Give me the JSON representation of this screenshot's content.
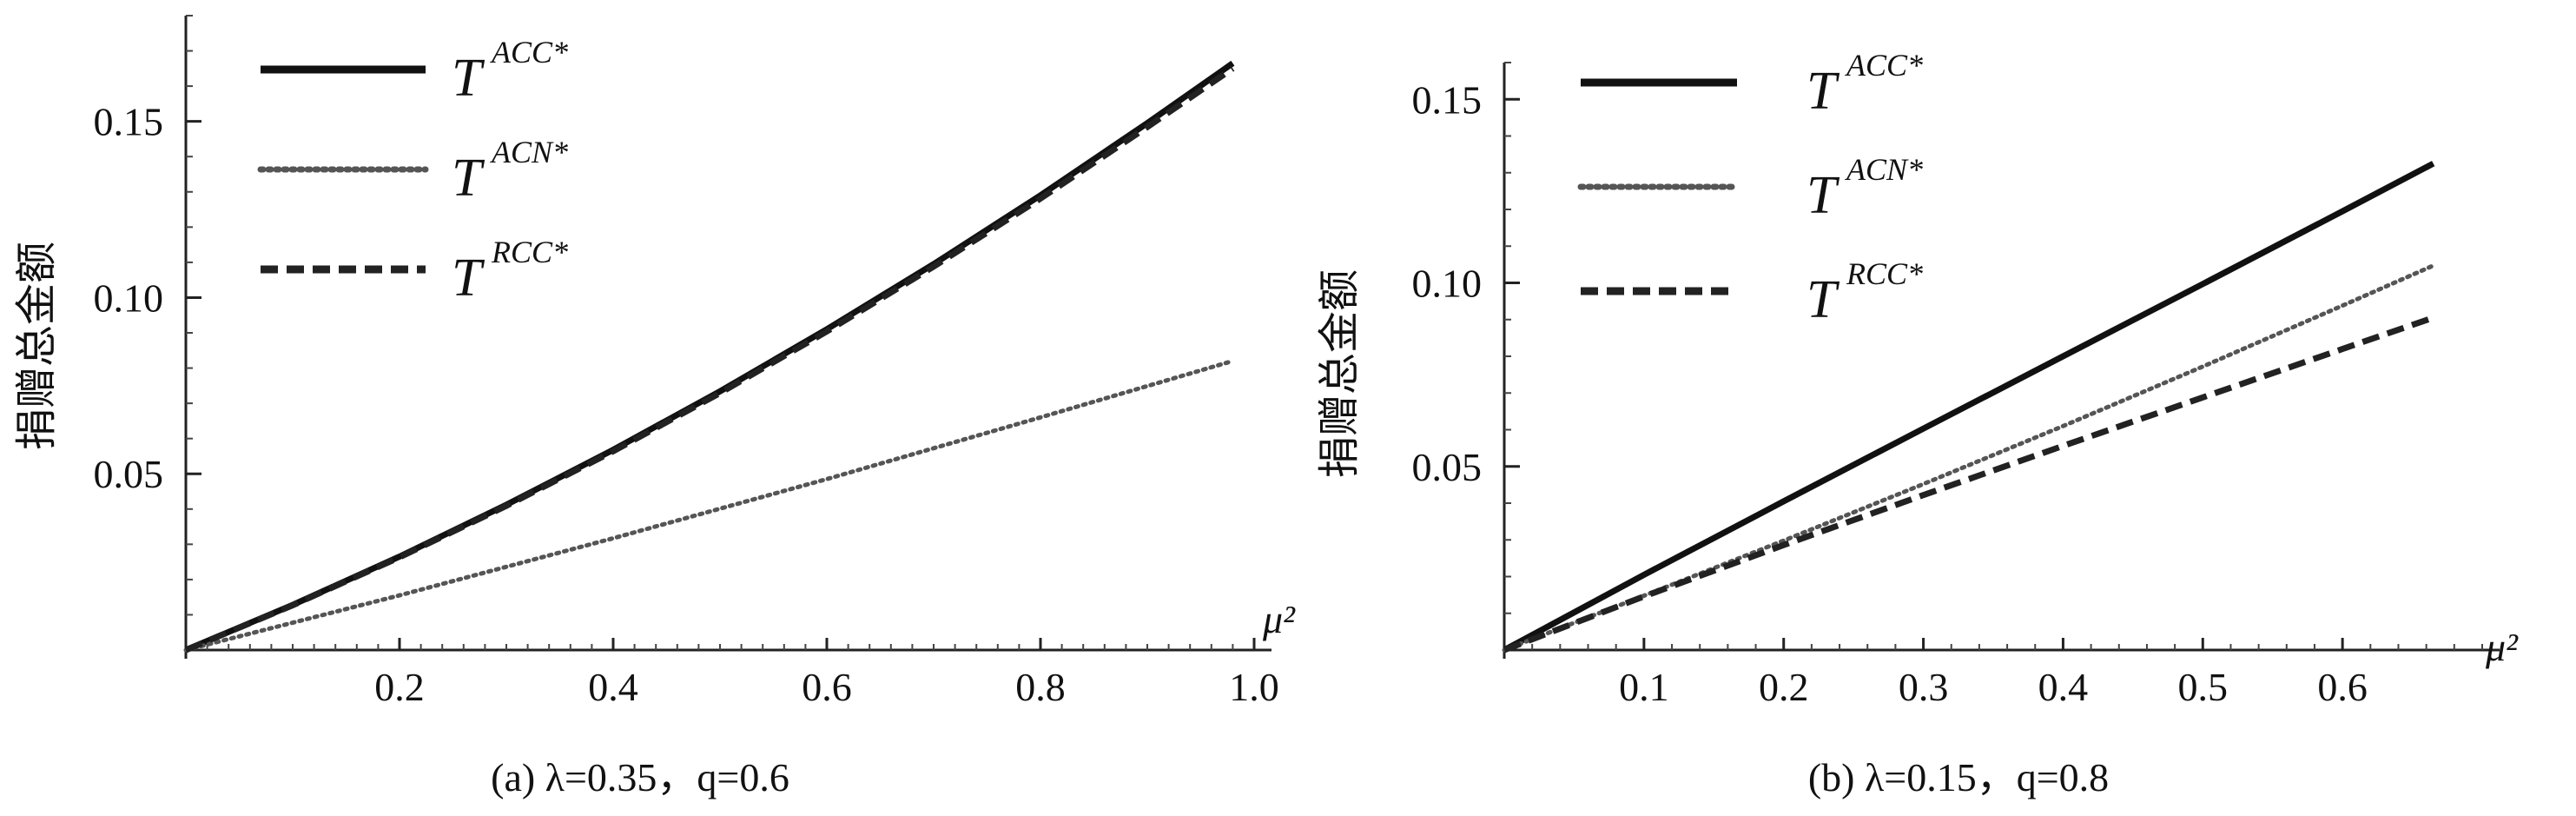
{
  "chart_data": [
    {
      "id": "a",
      "type": "line",
      "caption": "(a) λ=0.35，q=0.6",
      "ylabel": "捐赠总金额",
      "xlabel": "μ²",
      "xlim": [
        0,
        1.0
      ],
      "ylim": [
        0,
        0.18
      ],
      "x_ticks": [
        0.2,
        0.4,
        0.6,
        0.8,
        1.0
      ],
      "x_tick_labels": [
        "0.2",
        "0.4",
        "0.6",
        "0.8",
        "1.0"
      ],
      "y_ticks": [
        0.05,
        0.1,
        0.15
      ],
      "y_tick_labels": [
        "0.05",
        "0.10",
        "0.15"
      ],
      "legend_position": "top-left",
      "series": [
        {
          "name": "T^{ACC*}",
          "label_base": "T",
          "label_sup": "ACC*",
          "style": "solid",
          "x": [
            0,
            0.1,
            0.2,
            0.3,
            0.4,
            0.5,
            0.6,
            0.7,
            0.8,
            0.9,
            0.98
          ],
          "y": [
            0,
            0.0128,
            0.0265,
            0.0412,
            0.0568,
            0.0734,
            0.091,
            0.1095,
            0.129,
            0.1495,
            0.1665
          ]
        },
        {
          "name": "T^{ACN*}",
          "label_base": "T",
          "label_sup": "ACN*",
          "style": "dotted",
          "x": [
            0,
            0.2,
            0.4,
            0.6,
            0.8,
            0.98
          ],
          "y": [
            0,
            0.0155,
            0.0317,
            0.0485,
            0.066,
            0.082
          ]
        },
        {
          "name": "T^{RCC*}",
          "label_base": "T",
          "label_sup": "RCC*",
          "style": "dashed",
          "x": [
            0,
            0.1,
            0.2,
            0.3,
            0.4,
            0.5,
            0.6,
            0.7,
            0.8,
            0.9,
            0.98
          ],
          "y": [
            0,
            0.0127,
            0.0263,
            0.0409,
            0.0564,
            0.0729,
            0.0904,
            0.1088,
            0.1281,
            0.1484,
            0.165
          ]
        }
      ]
    },
    {
      "id": "b",
      "type": "line",
      "caption": "(b) λ=0.15，q=0.8",
      "ylabel": "捐赠总金额",
      "xlabel": "μ²",
      "xlim": [
        0,
        0.7
      ],
      "ylim": [
        0,
        0.16
      ],
      "x_ticks": [
        0.1,
        0.2,
        0.3,
        0.4,
        0.5,
        0.6
      ],
      "x_tick_labels": [
        "0.1",
        "0.2",
        "0.3",
        "0.4",
        "0.5",
        "0.6"
      ],
      "y_ticks": [
        0.05,
        0.1,
        0.15
      ],
      "y_tick_labels": [
        "0.05",
        "0.10",
        "0.15"
      ],
      "legend_position": "top-left",
      "series": [
        {
          "name": "T^{ACC*}",
          "label_base": "T",
          "label_sup": "ACC*",
          "style": "solid",
          "x": [
            0,
            0.1,
            0.2,
            0.3,
            0.4,
            0.5,
            0.6,
            0.665
          ],
          "y": [
            0,
            0.0205,
            0.0405,
            0.0603,
            0.08,
            0.0997,
            0.1195,
            0.1325
          ]
        },
        {
          "name": "T^{ACN*}",
          "label_base": "T",
          "label_sup": "ACN*",
          "style": "dotted",
          "x": [
            0,
            0.1,
            0.2,
            0.3,
            0.4,
            0.5,
            0.6,
            0.665
          ],
          "y": [
            0,
            0.0148,
            0.0298,
            0.0452,
            0.061,
            0.0772,
            0.0938,
            0.1047
          ]
        },
        {
          "name": "T^{RCC*}",
          "label_base": "T",
          "label_sup": "RCC*",
          "style": "dashed",
          "x": [
            0,
            0.1,
            0.2,
            0.3,
            0.4,
            0.5,
            0.6,
            0.665
          ],
          "y": [
            0,
            0.0146,
            0.0286,
            0.0422,
            0.0556,
            0.0688,
            0.082,
            0.0905
          ]
        }
      ]
    }
  ]
}
